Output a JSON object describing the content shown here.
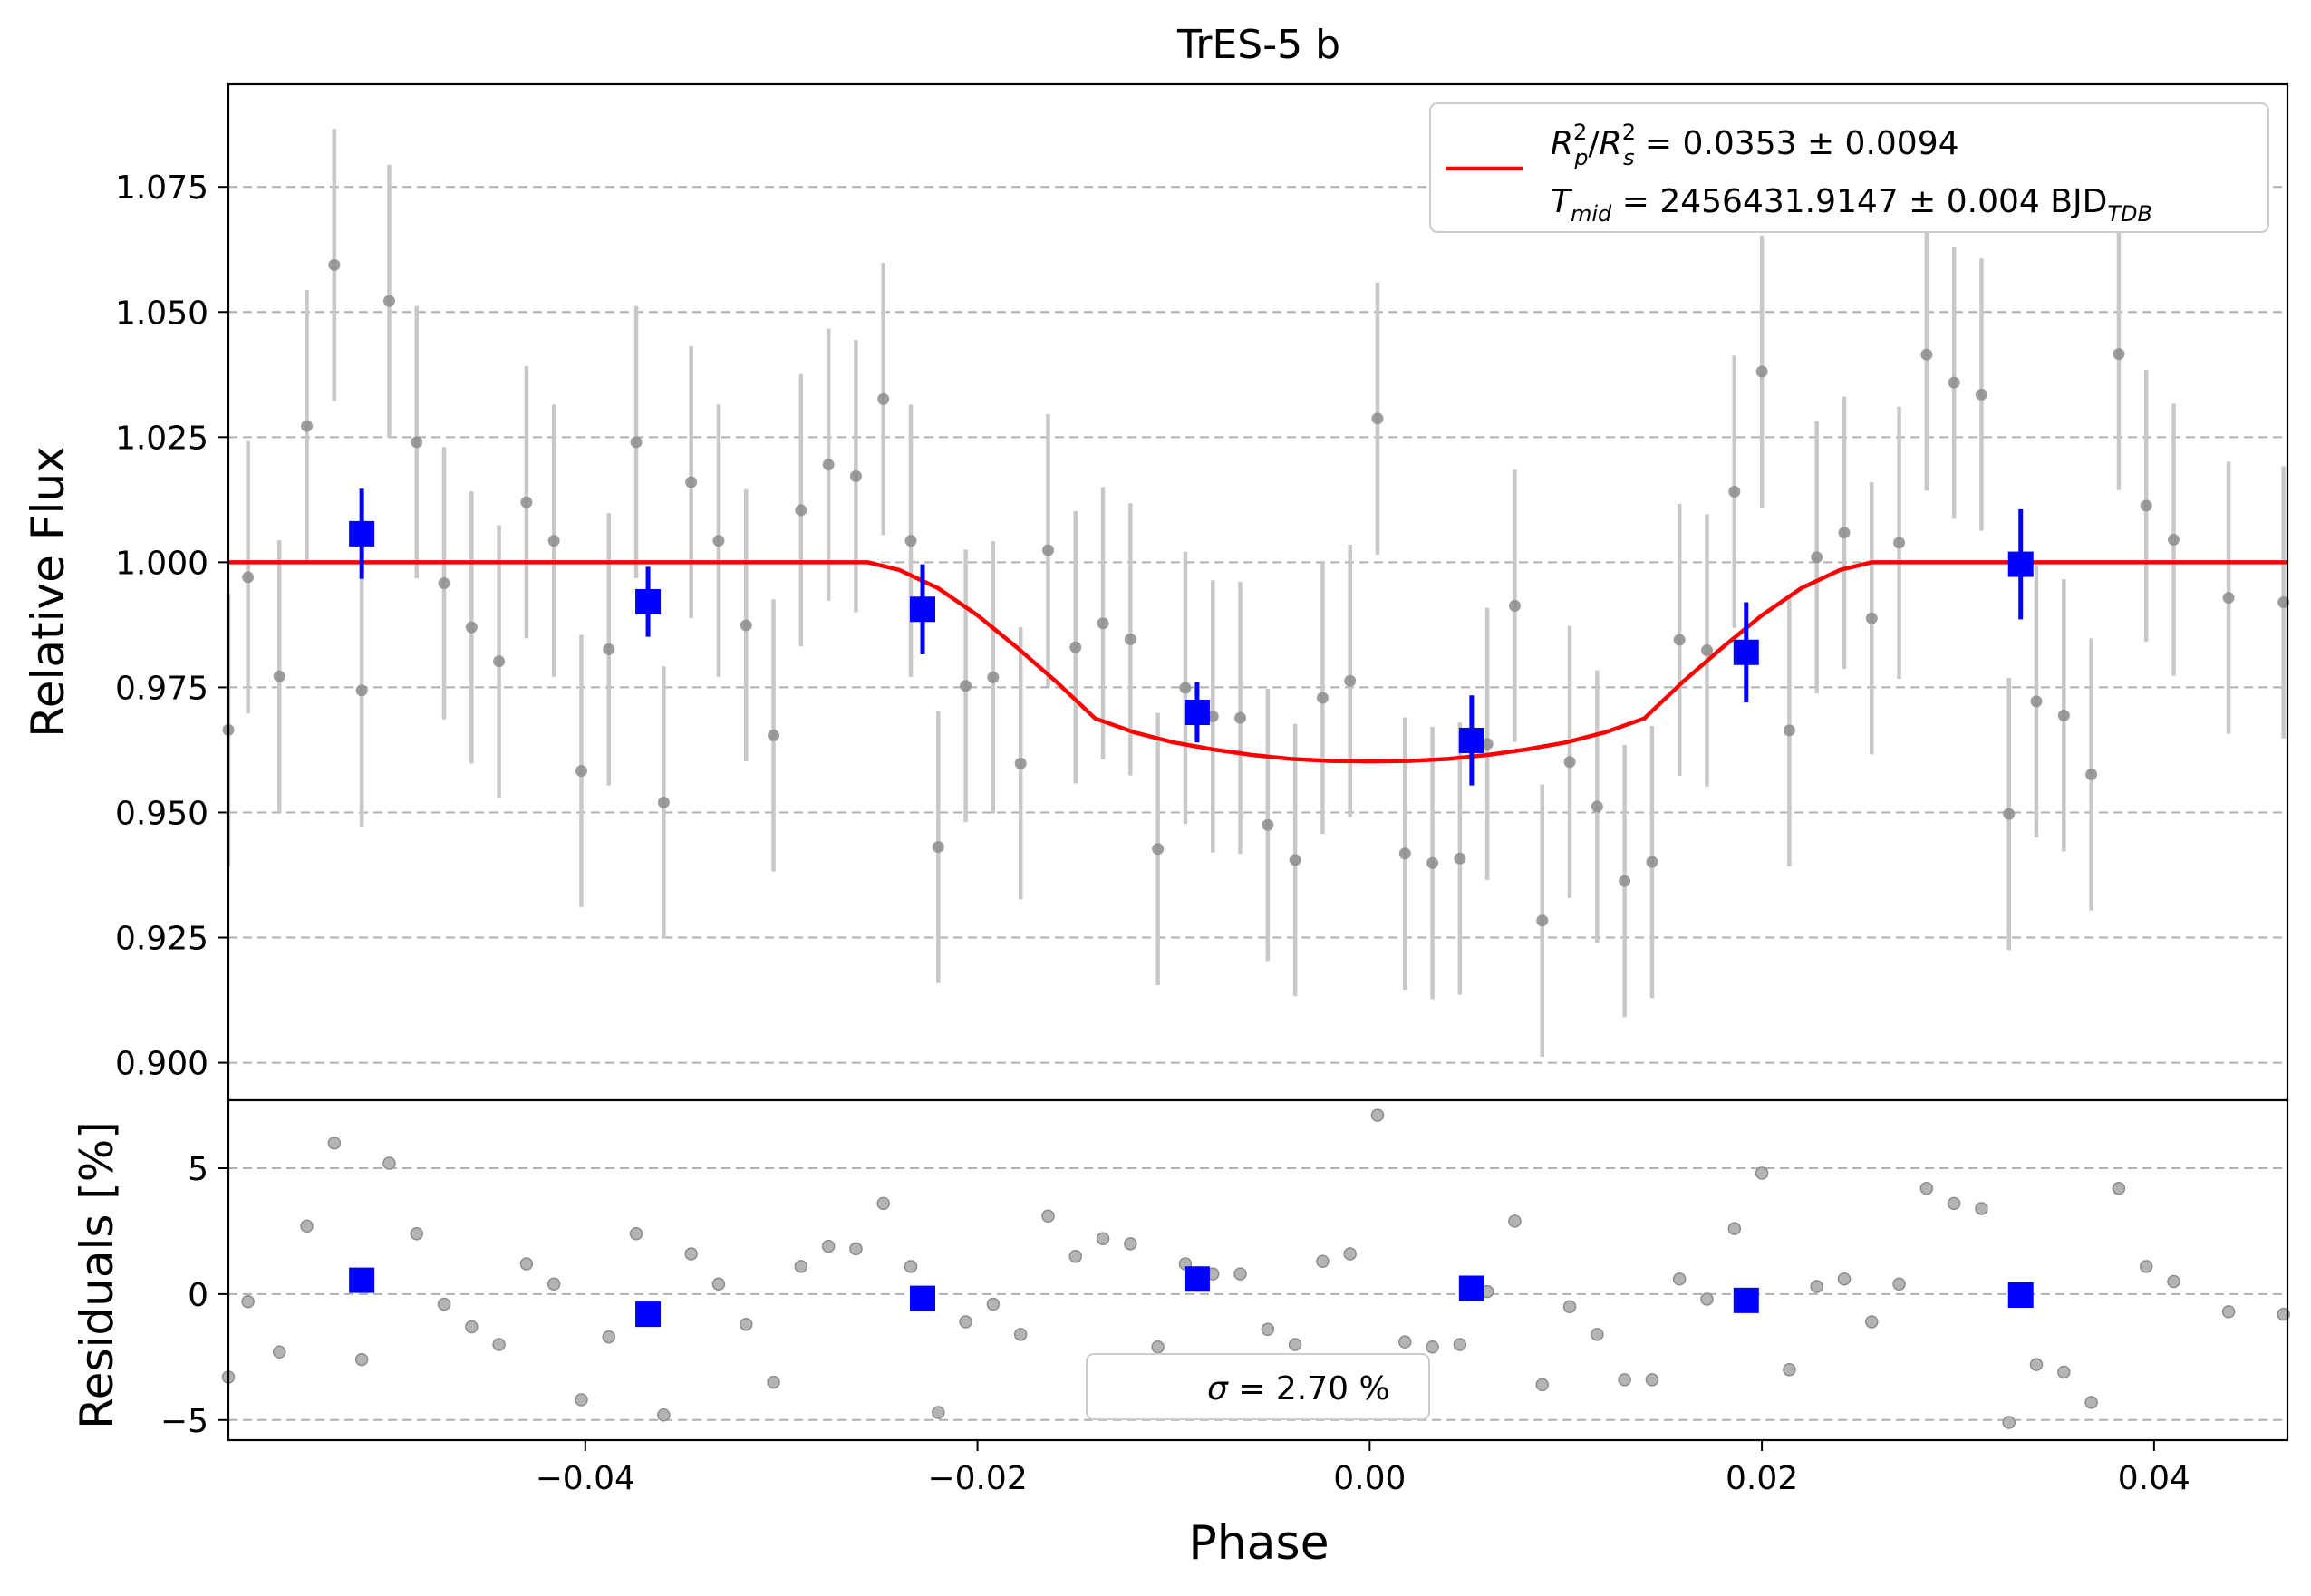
{
  "chart_data": {
    "type": "scatter",
    "title": "TrES-5 b",
    "xlabel": "Phase",
    "top_panel": {
      "ylabel": "Relative Flux",
      "xlim": [
        -0.0582,
        0.0468
      ],
      "ylim": [
        0.8925,
        1.0955
      ],
      "yticks": [
        0.9,
        0.925,
        0.95,
        0.975,
        1.0,
        1.025,
        1.05,
        1.075
      ],
      "ytick_labels": [
        "0.900",
        "0.925",
        "0.950",
        "0.975",
        "1.000",
        "1.025",
        "1.050",
        "1.075"
      ],
      "grid": "horizontal dashed",
      "legend_placement": "top-right",
      "legend": {
        "rp_label": "R",
        "rp_sub": "p",
        "rp_sup": "2",
        "rs_label": "R",
        "rs_sub": "s",
        "rs_sup": "2",
        "rp_value": " = 0.0353 ± 0.0094",
        "tmid_label": "T",
        "tmid_sub": "mid",
        "tmid_value": " = 2456431.9147 ± 0.004 BJD",
        "tmid_unit_sub": "TDB"
      },
      "series": [
        {
          "role": "raw",
          "color": "#8c8c8c",
          "errcolor": "#c8c8c8",
          "x": [
            -0.0582,
            -0.0572,
            -0.0556,
            -0.0542,
            -0.0528,
            -0.0514,
            -0.05,
            -0.0486,
            -0.0472,
            -0.0458,
            -0.0444,
            -0.043,
            -0.0416,
            -0.0402,
            -0.0388,
            -0.0374,
            -0.036,
            -0.0346,
            -0.0332,
            -0.0318,
            -0.0304,
            -0.029,
            -0.0276,
            -0.0262,
            -0.0248,
            -0.0234,
            -0.022,
            -0.0206,
            -0.0192,
            -0.0178,
            -0.0164,
            -0.015,
            -0.0136,
            -0.0122,
            -0.0108,
            -0.0094,
            -0.008,
            -0.0066,
            -0.0052,
            -0.0038,
            -0.0024,
            -0.001,
            0.0004,
            0.0018,
            0.0032,
            0.0046,
            0.006,
            0.0074,
            0.0088,
            0.0102,
            0.0116,
            0.013,
            0.0144,
            0.0158,
            0.0172,
            0.0186,
            0.02,
            0.0214,
            0.0228,
            0.0242,
            0.0256,
            0.027,
            0.0284,
            0.0298,
            0.0312,
            0.0326,
            0.034,
            0.0354,
            0.0368,
            0.0382,
            0.0396,
            0.041,
            0.0438,
            0.0466
          ],
          "y": [
            0.9665,
            0.997,
            0.9772,
            1.0272,
            1.0594,
            0.9744,
            1.0522,
            1.024,
            0.9958,
            0.987,
            0.9802,
            1.012,
            1.0043,
            0.9583,
            0.9826,
            1.024,
            0.952,
            1.016,
            1.0043,
            0.9874,
            0.9654,
            1.0104,
            1.0195,
            1.0172,
            1.0326,
            1.0043,
            0.9431,
            0.9753,
            0.977,
            0.9598,
            1.0024,
            0.983,
            0.9878,
            0.9846,
            0.9427,
            0.9749,
            0.9692,
            0.9689,
            0.9475,
            0.9405,
            0.9729,
            0.9763,
            1.0287,
            0.9418,
            0.9399,
            0.9408,
            0.9637,
            0.9913,
            0.9284,
            0.9601,
            0.9512,
            0.9363,
            0.9401,
            0.9845,
            0.9824,
            1.0141,
            1.0381,
            0.9664,
            1.001,
            1.0059,
            0.9888,
            1.0039,
            1.0415,
            1.0359,
            1.0335,
            0.9497,
            0.9722,
            0.9694,
            0.9576,
            1.0416,
            1.0113,
            1.0045,
            0.9929,
            0.992
          ],
          "err": 0.0272
        },
        {
          "role": "binned",
          "color": "#0000ff",
          "x": [
            -0.0514,
            -0.0368,
            -0.0228,
            -0.0088,
            0.0052,
            0.0192,
            0.0332
          ],
          "y": [
            1.0057,
            0.9921,
            0.9906,
            0.97,
            0.9644,
            0.982,
            0.9996
          ],
          "err": [
            0.009,
            0.007,
            0.009,
            0.006,
            0.009,
            0.01,
            0.011
          ]
        },
        {
          "role": "model",
          "name": "",
          "color": "#ff0000",
          "x": [
            -0.0582,
            -0.0256,
            -0.024,
            -0.022,
            -0.02,
            -0.018,
            -0.016,
            -0.014,
            -0.012,
            -0.01,
            -0.008,
            -0.006,
            -0.004,
            -0.002,
            0.0,
            0.002,
            0.004,
            0.006,
            0.008,
            0.01,
            0.012,
            0.014,
            0.016,
            0.018,
            0.02,
            0.022,
            0.024,
            0.0256,
            0.0468
          ],
          "y": [
            1.0,
            1.0,
            0.9985,
            0.9948,
            0.9894,
            0.983,
            0.9762,
            0.9688,
            0.966,
            0.964,
            0.9626,
            0.9615,
            0.9607,
            0.9603,
            0.9602,
            0.9603,
            0.9607,
            0.9615,
            0.9626,
            0.964,
            0.966,
            0.9688,
            0.9762,
            0.983,
            0.9894,
            0.9948,
            0.9985,
            1.0,
            1.0
          ]
        }
      ]
    },
    "bottom_panel": {
      "ylabel": "Residuals [%]",
      "xlim": [
        -0.0582,
        0.0468
      ],
      "ylim": [
        -5.8,
        7.7
      ],
      "yticks": [
        -5,
        0,
        5
      ],
      "ytick_labels": [
        "−5",
        "0",
        "5"
      ],
      "xticks": [
        -0.04,
        -0.02,
        0.0,
        0.02,
        0.04
      ],
      "xtick_labels": [
        "−0.04",
        "−0.02",
        "0.00",
        "0.02",
        "0.04"
      ],
      "grid": "horizontal dashed",
      "legend_placement": "bottom-center",
      "sigma_symbol": "σ",
      "sigma_text": " = 2.70 %",
      "raw_residuals": [
        -3.3,
        -0.3,
        -2.3,
        2.7,
        6.0,
        -2.6,
        5.2,
        2.4,
        -0.4,
        -1.3,
        -2.0,
        1.2,
        0.4,
        -4.2,
        -1.7,
        2.4,
        -4.8,
        1.6,
        0.4,
        -1.2,
        -3.5,
        1.1,
        1.9,
        1.8,
        3.6,
        1.1,
        -4.7,
        -1.1,
        -0.4,
        -1.6,
        3.1,
        1.5,
        2.2,
        2.0,
        -2.1,
        1.2,
        0.8,
        0.8,
        -1.4,
        -2.0,
        1.3,
        1.6,
        7.1,
        -1.9,
        -2.1,
        -2.0,
        0.1,
        2.9,
        -3.6,
        -0.5,
        -1.6,
        -3.4,
        -3.4,
        0.6,
        -0.2,
        2.6,
        4.8,
        -3.0,
        0.3,
        0.6,
        -1.1,
        0.4,
        4.2,
        3.6,
        3.4,
        -5.1,
        -2.8,
        -3.1,
        -4.3,
        4.2,
        1.1,
        0.5,
        -0.7,
        -0.8
      ],
      "binned_residuals": [
        0.55,
        -0.8,
        -0.17,
        0.6,
        0.23,
        -0.25,
        -0.04
      ]
    }
  }
}
